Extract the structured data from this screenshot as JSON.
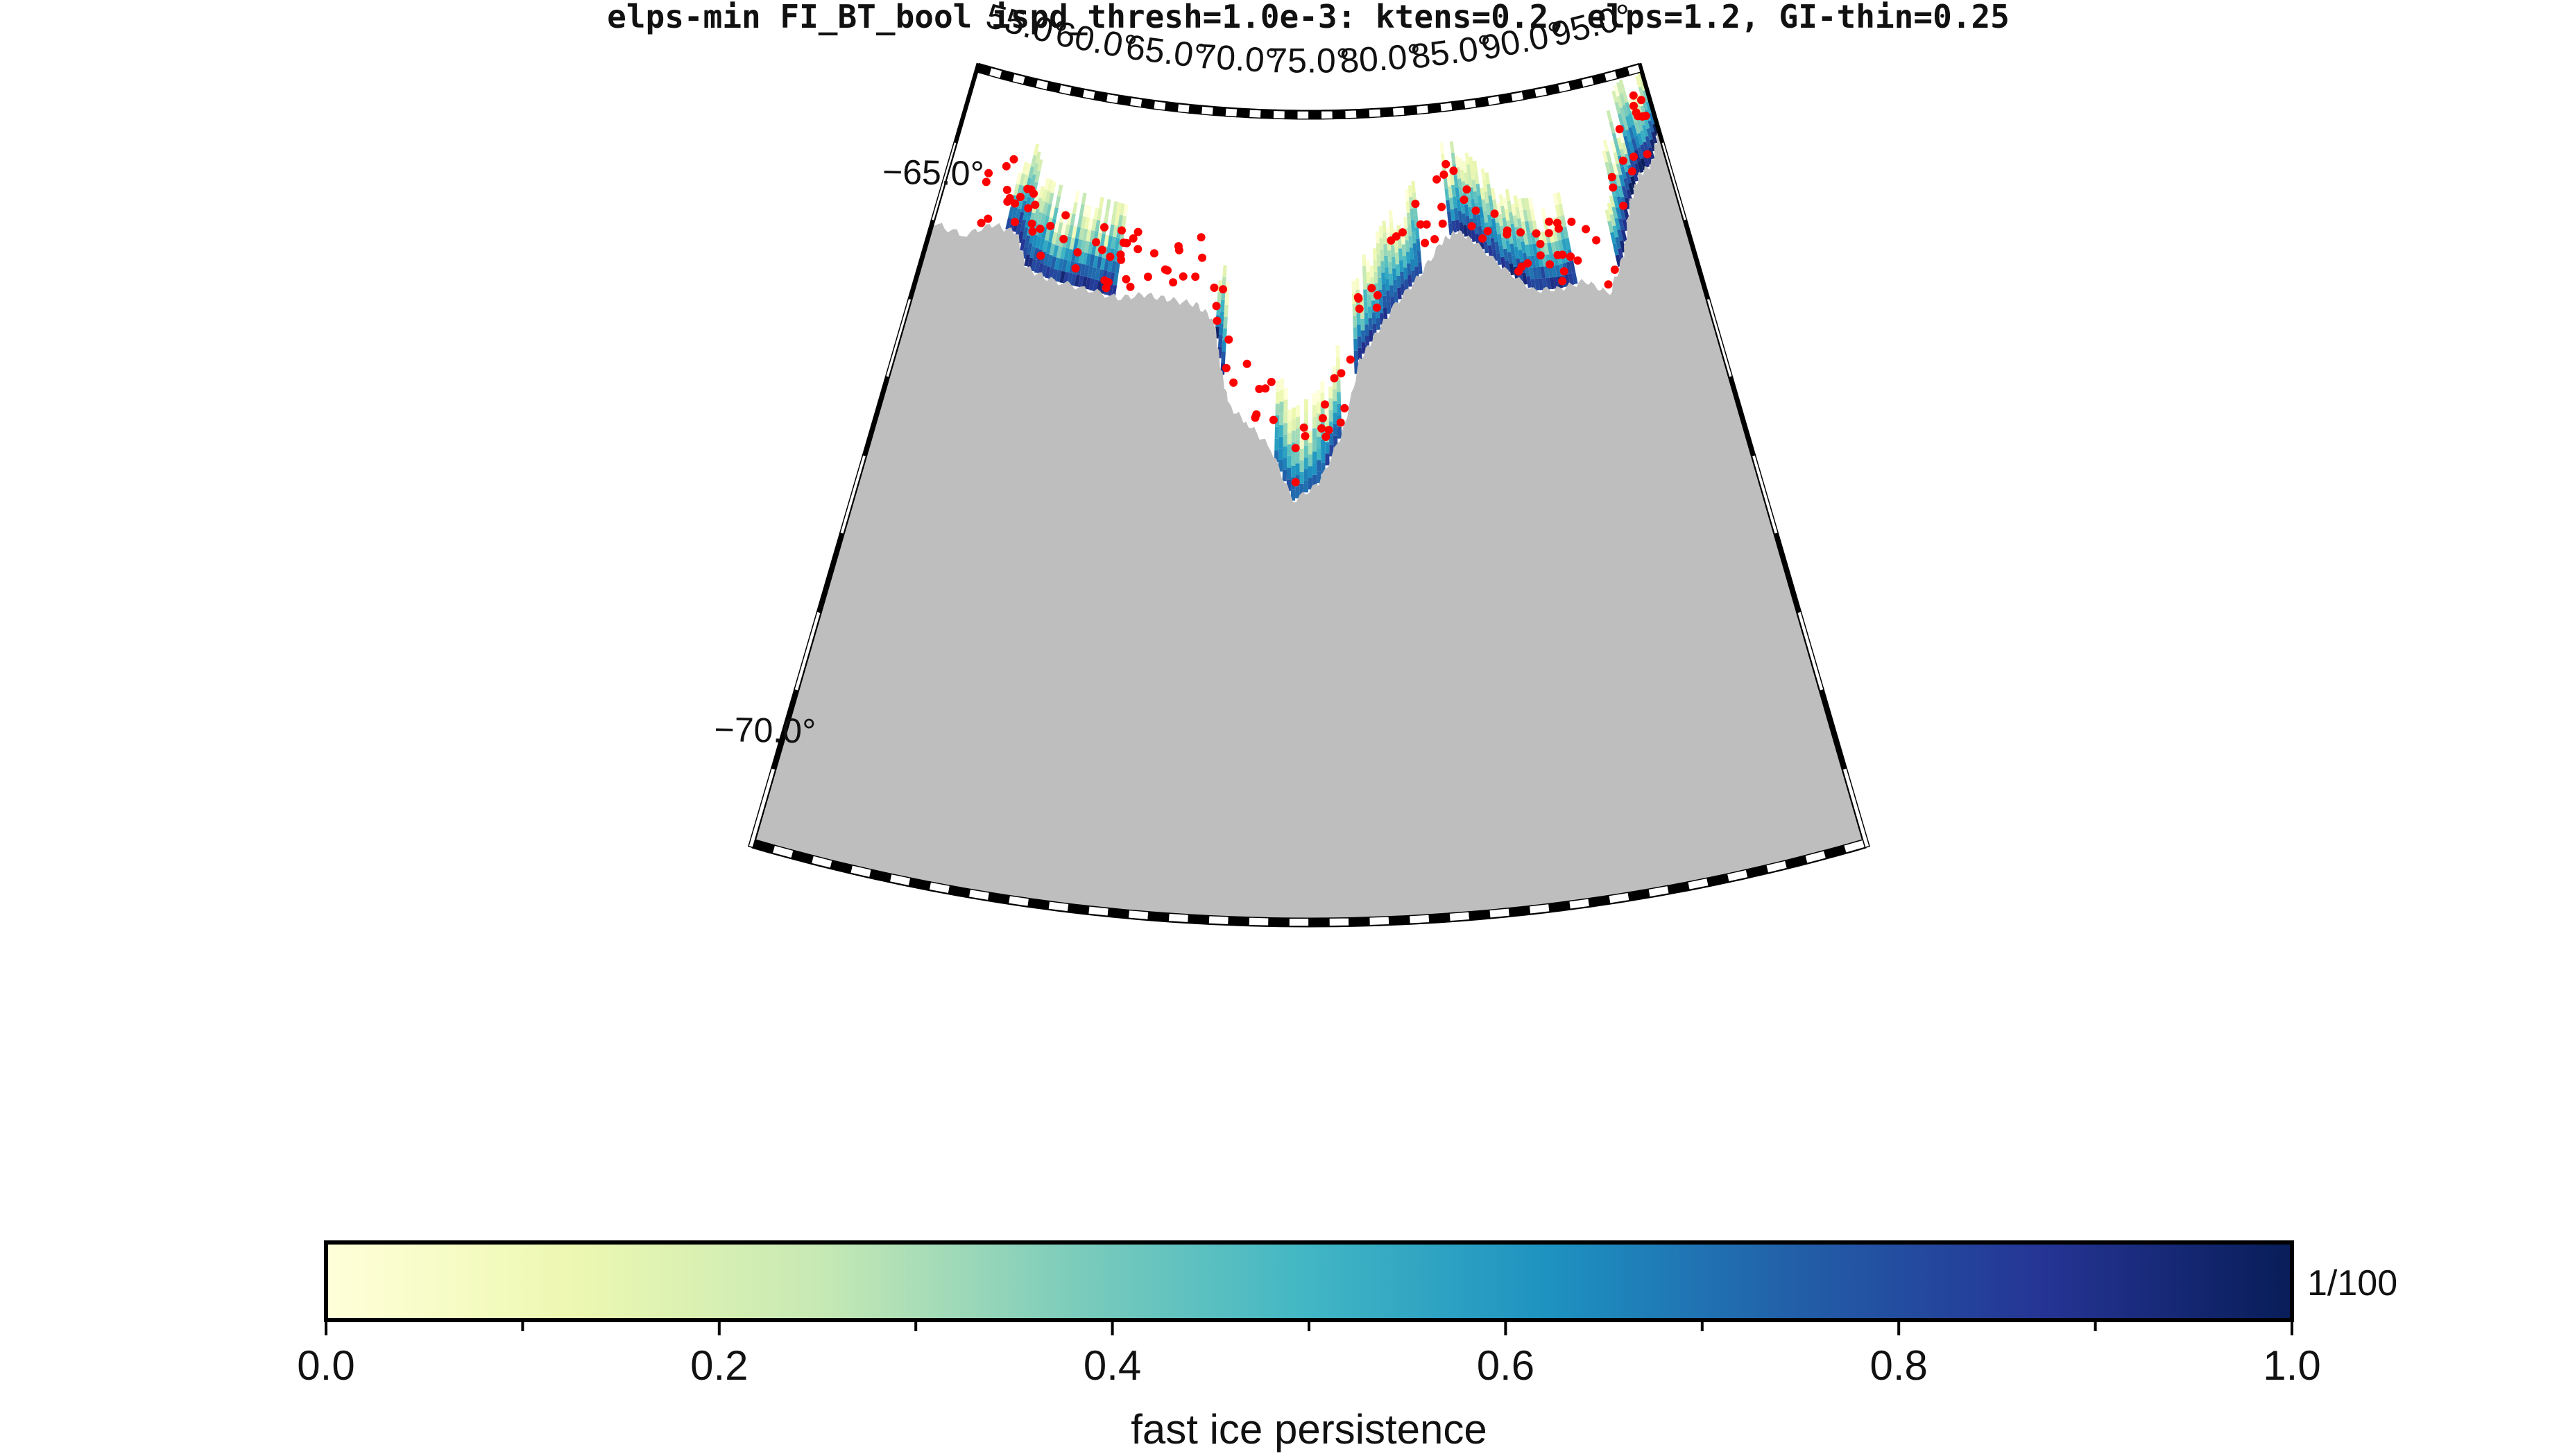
{
  "title": "elps-min FI_BT_bool ispd_thresh=1.0e-3: ktens=0.2, elps=1.2, GI-thin=0.25",
  "map": {
    "projection": "conic section",
    "lon_ticks": [
      {
        "lon": 55,
        "label": "55.0°"
      },
      {
        "lon": 60,
        "label": "60.0°"
      },
      {
        "lon": 65,
        "label": "65.0°"
      },
      {
        "lon": 70,
        "label": "70.0°"
      },
      {
        "lon": 75,
        "label": "75.0°"
      },
      {
        "lon": 80,
        "label": "80.0°"
      },
      {
        "lon": 85,
        "label": "85.0°"
      },
      {
        "lon": 90,
        "label": "90.0°"
      },
      {
        "lon": 95,
        "label": "95.0°"
      }
    ],
    "lat_ticks": [
      {
        "lat": -65,
        "label": "−65.0°"
      },
      {
        "lat": -70,
        "label": "−70.0°"
      }
    ],
    "land_color": "#bebebe",
    "marker_color": "#ff0000",
    "marker_meaning": "grounded iceberg points"
  },
  "colorbar": {
    "label": "fast ice persistence",
    "unit": "1/100",
    "min": 0.0,
    "max": 1.0,
    "ticks": [
      {
        "value": 0.0,
        "label": "0.0"
      },
      {
        "value": 0.2,
        "label": "0.2"
      },
      {
        "value": 0.4,
        "label": "0.4"
      },
      {
        "value": 0.6,
        "label": "0.6"
      },
      {
        "value": 0.8,
        "label": "0.8"
      },
      {
        "value": 1.0,
        "label": "1.0"
      }
    ],
    "colors": [
      "#ffffd9",
      "#edf8b1",
      "#c7e9b4",
      "#7fcdbb",
      "#41b6c4",
      "#1d91c0",
      "#225ea8",
      "#253494",
      "#081d58"
    ]
  }
}
